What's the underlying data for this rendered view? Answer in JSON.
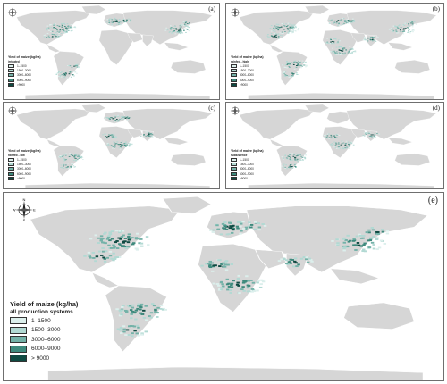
{
  "colors": {
    "land": "#d6d6d6",
    "water": "#ffffff",
    "border": "#ffffff",
    "c1": "#dcefec",
    "c2": "#b2d9d3",
    "c3": "#74b2a8",
    "c4": "#3e8a7d",
    "c5": "#0f4a42"
  },
  "panels": [
    {
      "id": "a",
      "label": "(a)",
      "legend_title": "Yield of maize (kg/ha)",
      "legend_subtitle": "irrigated",
      "classes": [
        "1–1500",
        "1500–3000",
        "3000–6000",
        "6000–9000",
        ">9000"
      ],
      "emphasis": [
        "north-america",
        "europe",
        "china",
        "south-america-south"
      ]
    },
    {
      "id": "b",
      "label": "(b)",
      "legend_title": "Yield of maize (kg/ha)",
      "legend_subtitle": "rainfed - high",
      "classes": [
        "1–1500",
        "1500–3000",
        "3000–6000",
        "6000–9000",
        ">9000"
      ],
      "emphasis": [
        "north-america",
        "europe",
        "china",
        "south-america",
        "africa",
        "india"
      ]
    },
    {
      "id": "c",
      "label": "(c)",
      "legend_title": "Yield of maize (kg/ha)",
      "legend_subtitle": "rainfed - low",
      "classes": [
        "1–1500",
        "1500–3000",
        "3000–6000",
        "6000–9000",
        ">9000"
      ],
      "emphasis": [
        "south-america",
        "africa",
        "europe",
        "india"
      ]
    },
    {
      "id": "d",
      "label": "(d)",
      "legend_title": "Yield of maize (kg/ha)",
      "legend_subtitle": "subsistence",
      "classes": [
        "1–1500",
        "1500–3000",
        "3000–6000",
        "6000–9000",
        ">9000"
      ],
      "emphasis": [
        "south-america",
        "africa",
        "india"
      ]
    },
    {
      "id": "e",
      "label": "(e)",
      "legend_title": "Yield of maize (kg/ha)",
      "legend_subtitle": "all production systems",
      "classes": [
        "1–1500",
        "1500–3000",
        "3000–6000",
        "6000–9000",
        "> 9000"
      ],
      "emphasis": [
        "north-america",
        "europe",
        "china",
        "south-america",
        "africa",
        "india"
      ]
    }
  ],
  "compass": {
    "n": "N",
    "s": "S",
    "e": "E",
    "w": "W"
  }
}
